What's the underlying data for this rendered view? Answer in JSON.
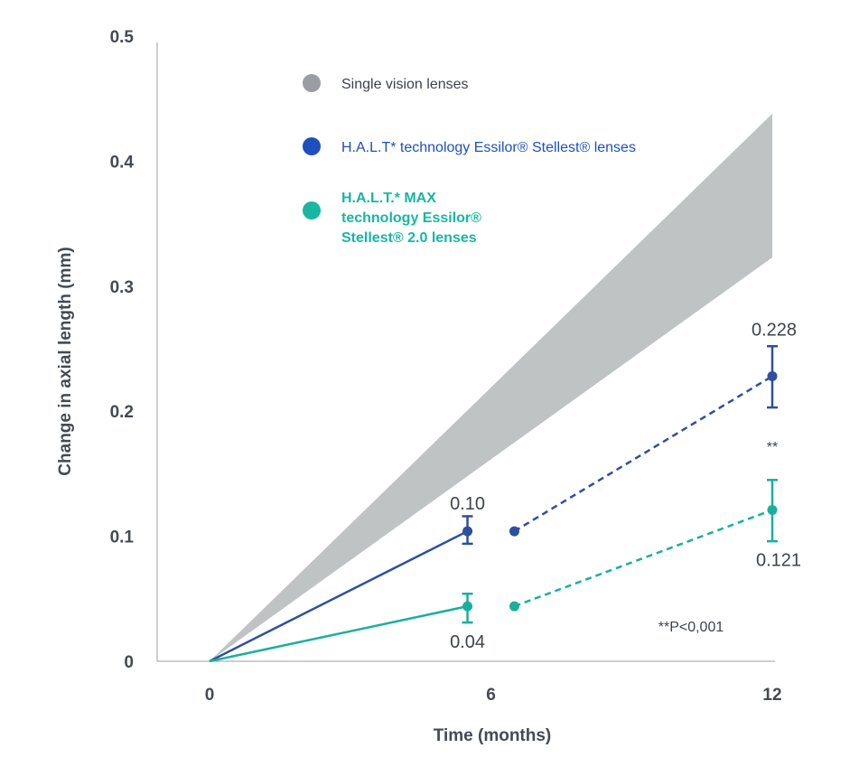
{
  "chart_data": {
    "type": "line",
    "xlabel": "Time (months)",
    "ylabel": "Change in axial length (mm)",
    "x_ticks": [
      "0",
      "6",
      "12"
    ],
    "y_ticks": [
      "0",
      "0.1",
      "0.2",
      "0.3",
      "0.4",
      "0.5"
    ],
    "xlim": [
      0,
      12
    ],
    "ylim": [
      0,
      0.5
    ],
    "grid": false,
    "legend_position": "top-left",
    "band": {
      "name": "Single vision lenses",
      "color": "#bfc3c4",
      "legend_color": "#9a9ea2",
      "x": [
        0,
        12
      ],
      "lower": [
        0,
        0.323
      ],
      "upper": [
        0,
        0.438
      ]
    },
    "series": [
      {
        "name": "H.A.L.T* technology Essilor® Stellest® lenses",
        "color": "#2e4f9e",
        "legend_color": "#1f4fbf",
        "solid": {
          "x": [
            0,
            5.5
          ],
          "y": [
            0,
            0.104
          ]
        },
        "dashed": {
          "x": [
            6.5,
            12
          ],
          "y": [
            0.104,
            0.228
          ]
        },
        "error_bars": [
          {
            "x": 5.5,
            "y": 0.104,
            "low": 0.094,
            "high": 0.116
          },
          {
            "x": 12,
            "y": 0.228,
            "low": 0.203,
            "high": 0.252
          }
        ],
        "labels": [
          "0.10",
          "0.228"
        ]
      },
      {
        "name": "H.A.L.T.* MAX technology Essilor® Stellest® 2.0 lenses",
        "name_lines": [
          "H.A.L.T.* MAX",
          "technology Essilor®",
          "Stellest® 2.0 lenses"
        ],
        "color": "#1aaf9c",
        "legend_color": "#1ab5a3",
        "solid": {
          "x": [
            0,
            5.5
          ],
          "y": [
            0,
            0.044
          ]
        },
        "dashed": {
          "x": [
            6.5,
            12
          ],
          "y": [
            0.044,
            0.121
          ]
        },
        "error_bars": [
          {
            "x": 5.5,
            "y": 0.044,
            "low": 0.031,
            "high": 0.054
          },
          {
            "x": 12,
            "y": 0.121,
            "low": 0.096,
            "high": 0.145
          }
        ],
        "labels": [
          "0.04",
          "0.121"
        ]
      }
    ],
    "annotations": {
      "significance_marker": "**",
      "footnote": "**P<0,001"
    }
  }
}
